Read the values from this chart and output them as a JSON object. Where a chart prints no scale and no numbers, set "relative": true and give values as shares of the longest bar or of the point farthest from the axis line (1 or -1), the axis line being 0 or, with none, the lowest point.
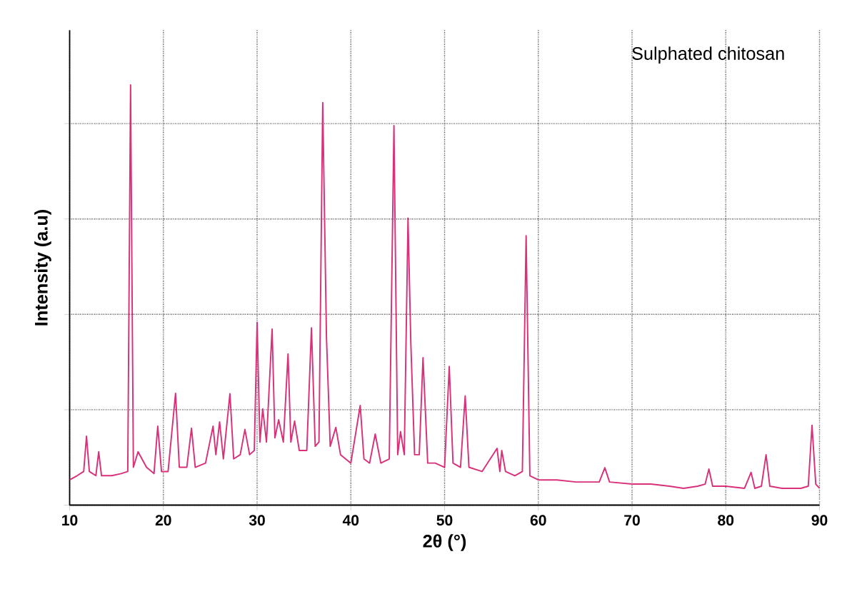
{
  "chart_data": {
    "type": "line",
    "relative": true,
    "xlabel": "2θ (°)",
    "ylabel": "Intensity (a.u)",
    "annotations": [
      "Sulphated chitosan"
    ],
    "x": [
      10,
      10.8,
      11.5,
      11.8,
      12.1,
      12.8,
      13.1,
      13.4,
      14.5,
      15.5,
      16.2,
      16.5,
      16.8,
      17.3,
      18.2,
      19.0,
      19.4,
      19.8,
      20.5,
      21.3,
      21.7,
      22.5,
      23.0,
      23.4,
      24.5,
      25.3,
      25.6,
      26.0,
      26.4,
      27.1,
      27.5,
      28.2,
      28.7,
      29.2,
      29.7,
      30.0,
      30.3,
      30.6,
      31.0,
      31.6,
      31.9,
      32.3,
      32.8,
      33.3,
      33.6,
      34.0,
      34.5,
      35.3,
      35.8,
      36.2,
      36.6,
      37.0,
      37.4,
      37.8,
      38.4,
      38.9,
      40.0,
      41.0,
      41.4,
      42.0,
      42.6,
      43.2,
      44.1,
      44.6,
      45.0,
      45.3,
      45.7,
      46.1,
      46.4,
      46.8,
      47.3,
      47.7,
      48.2,
      49.0,
      50.0,
      50.5,
      50.9,
      51.7,
      52.2,
      52.6,
      54.0,
      55.6,
      55.9,
      56.1,
      56.5,
      57.5,
      58.3,
      58.7,
      59.1,
      60.0,
      62.0,
      64.0,
      66.5,
      67.1,
      67.6,
      70.0,
      72.0,
      74.0,
      75.5,
      77.0,
      77.8,
      78.2,
      78.6,
      80.0,
      82.0,
      82.7,
      83.1,
      83.8,
      84.3,
      84.7,
      86.0,
      88.0,
      88.8,
      89.2,
      89.6,
      90
    ],
    "values": [
      0.06,
      0.07,
      0.08,
      0.164,
      0.08,
      0.07,
      0.127,
      0.07,
      0.07,
      0.075,
      0.08,
      1.0,
      0.09,
      0.127,
      0.09,
      0.075,
      0.188,
      0.08,
      0.08,
      0.266,
      0.09,
      0.09,
      0.183,
      0.09,
      0.1,
      0.188,
      0.12,
      0.198,
      0.11,
      0.265,
      0.11,
      0.12,
      0.18,
      0.12,
      0.13,
      0.435,
      0.15,
      0.229,
      0.15,
      0.419,
      0.16,
      0.203,
      0.15,
      0.36,
      0.15,
      0.2,
      0.13,
      0.13,
      0.422,
      0.14,
      0.15,
      0.958,
      0.4,
      0.14,
      0.185,
      0.12,
      0.1,
      0.237,
      0.11,
      0.1,
      0.169,
      0.1,
      0.11,
      0.903,
      0.12,
      0.175,
      0.12,
      0.683,
      0.386,
      0.12,
      0.12,
      0.351,
      0.1,
      0.1,
      0.09,
      0.33,
      0.1,
      0.09,
      0.26,
      0.09,
      0.08,
      0.135,
      0.08,
      0.13,
      0.08,
      0.07,
      0.08,
      0.641,
      0.07,
      0.06,
      0.06,
      0.055,
      0.055,
      0.089,
      0.055,
      0.05,
      0.05,
      0.045,
      0.04,
      0.045,
      0.05,
      0.086,
      0.045,
      0.045,
      0.04,
      0.078,
      0.04,
      0.045,
      0.12,
      0.045,
      0.04,
      0.04,
      0.045,
      0.19,
      0.05,
      0.04
    ],
    "color": "#d9307a",
    "xlim": [
      10,
      90
    ],
    "xticks": [
      10,
      20,
      30,
      40,
      50,
      60,
      70,
      80,
      90
    ],
    "grid": true,
    "tick_labels": "x"
  }
}
